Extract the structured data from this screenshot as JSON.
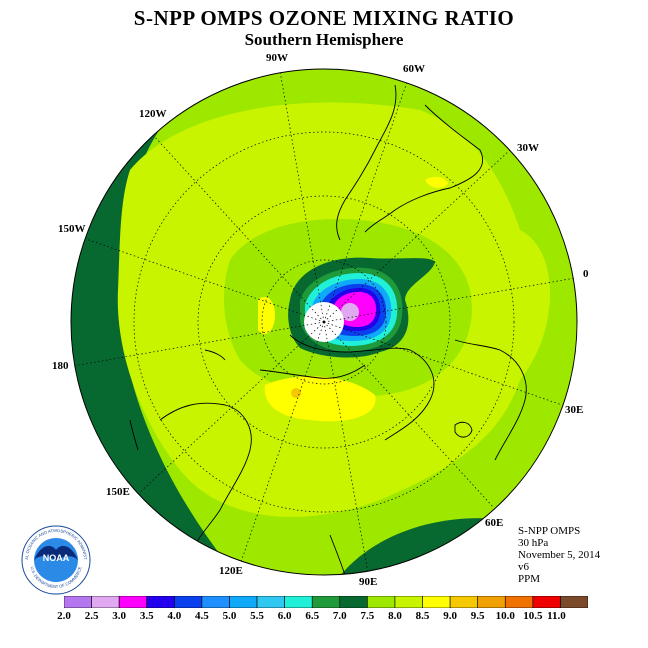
{
  "title": "S-NPP OMPS OZONE MIXING RATIO",
  "subtitle": "Southern Hemisphere",
  "longitude_labels": {
    "w90": "90W",
    "w60": "60W",
    "w30": "30W",
    "w120": "120W",
    "w150": "150W",
    "e0": "0",
    "w180": "180",
    "e30": "30E",
    "e60": "60E",
    "e90": "90E",
    "e120": "120E",
    "e150": "150E"
  },
  "info": {
    "instrument": "S-NPP OMPS",
    "level": "30 hPa",
    "date": "November 5, 2014",
    "version": "v6",
    "units": "PPM"
  },
  "logo": {
    "text": "NOAA",
    "ring_text": "NATIONAL OCEANIC AND ATMOSPHERIC ADMINISTRATION",
    "ring_text_bottom": "U.S. DEPARTMENT OF COMMERCE"
  },
  "colorbar": {
    "labels": [
      "2.0",
      "2.5",
      "3.0",
      "3.5",
      "4.0",
      "4.5",
      "5.0",
      "5.5",
      "6.0",
      "6.5",
      "7.0",
      "7.5",
      "8.0",
      "8.5",
      "9.0",
      "9.5",
      "10.0",
      "10.5",
      "11.0"
    ],
    "colors": [
      "#b477ef",
      "#e0a8f0",
      "#ff00ff",
      "#2200ee",
      "#0a40ee",
      "#1e90ff",
      "#10a8f8",
      "#30c8f0",
      "#20f0d8",
      "#1f9a3a",
      "#086930",
      "#9ee800",
      "#c8f400",
      "#ffff00",
      "#f5c800",
      "#f0a000",
      "#f07000",
      "#ee0000",
      "#7a4a2a"
    ]
  },
  "map_colors": {
    "dark_green": "#086930",
    "mid_green": "#1f9a3a",
    "light_green": "#9ee800",
    "yellow_green": "#c8f400",
    "yellow": "#ffff00",
    "orange": "#f5c800"
  }
}
